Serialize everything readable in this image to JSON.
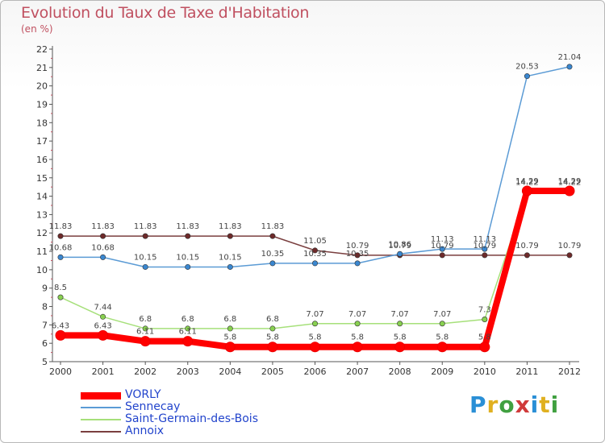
{
  "chart_data": {
    "type": "line",
    "title": "Evolution du Taux de Taxe d'Habitation",
    "subtitle": "(en %)",
    "x": [
      "2000",
      "2001",
      "2002",
      "2003",
      "2004",
      "2005",
      "2006",
      "2007",
      "2008",
      "2009",
      "2010",
      "2011",
      "2012"
    ],
    "ylim": [
      5,
      22
    ],
    "yticks": [
      5,
      6,
      7,
      8,
      9,
      10,
      11,
      12,
      13,
      14,
      15,
      16,
      17,
      18,
      19,
      20,
      21,
      22
    ],
    "grid": false,
    "legend_position": "bottom-left",
    "series": [
      {
        "name": "VORLY",
        "color": "#ff0000",
        "marker_color": "#ff0000",
        "values": [
          6.43,
          6.43,
          6.11,
          6.11,
          5.8,
          5.8,
          5.8,
          5.8,
          5.8,
          5.8,
          5.8,
          14.29,
          14.29
        ]
      },
      {
        "name": "Sennecay",
        "color": "#5b9bd5",
        "marker_color": "#3a87d0",
        "values": [
          10.68,
          10.68,
          10.15,
          10.15,
          10.15,
          10.35,
          10.35,
          10.35,
          10.86,
          11.13,
          11.13,
          20.53,
          21.04
        ]
      },
      {
        "name": "Saint-Germain-des-Bois",
        "color": "#a6e07a",
        "marker_color": "#88d050",
        "values": [
          8.5,
          7.44,
          6.8,
          6.8,
          6.8,
          6.8,
          7.07,
          7.07,
          7.07,
          7.07,
          7.3,
          14.22,
          14.22
        ]
      },
      {
        "name": "Annoix",
        "color": "#7a3f3f",
        "marker_color": "#6e2a2a",
        "values": [
          11.83,
          11.83,
          11.83,
          11.83,
          11.83,
          11.83,
          11.05,
          10.79,
          10.79,
          10.79,
          10.79,
          10.79,
          10.79
        ]
      }
    ],
    "data_labels": [
      [
        "6.43",
        "6.43",
        "6.11",
        "6.11",
        "5.8",
        "5.8",
        "5.8",
        "5.8",
        "5.8",
        "5.8",
        "5.8",
        "14.29",
        "14.29"
      ],
      [
        "10.68",
        "10.68",
        "10.15",
        "10.15",
        "10.15",
        "10.35",
        "10.35",
        "10.35",
        "10.86",
        "11.13",
        "11.13",
        "20.53",
        "21.04"
      ],
      [
        "8.5",
        "7.44",
        "6.8",
        "6.8",
        "6.8",
        "6.8",
        "7.07",
        "7.07",
        "7.07",
        "7.07",
        "7.3",
        "14.22",
        "14.22"
      ],
      [
        "11.83",
        "11.83",
        "11.83",
        "11.83",
        "11.83",
        "11.83",
        "11.05",
        "10.79",
        "10.79",
        "10.79",
        "10.79",
        "10.79",
        "10.79"
      ]
    ]
  },
  "logo": {
    "text": "Proxiti",
    "letters": [
      "P",
      "r",
      "o",
      "x",
      "i",
      "t",
      "i"
    ],
    "colors": [
      "#2a8fd6",
      "#e0b020",
      "#40a040",
      "#d03a3a",
      "#2a8fd6",
      "#e0b020",
      "#40a040"
    ]
  }
}
